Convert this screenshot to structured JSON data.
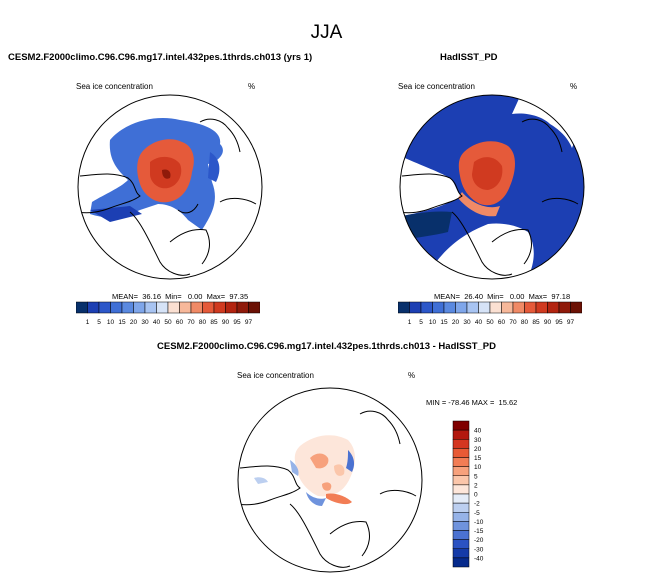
{
  "figure": {
    "title": "JJA"
  },
  "panels": [
    {
      "title": "CESM2.F2000climo.C96.C96.mg17.intel.432pes.1thrds.ch013 (yrs 1)",
      "variable": "Sea ice concentration",
      "units": "%",
      "stats": "MEAN=  36.16  Min=   0.00  Max=  97.35"
    },
    {
      "title": "HadISST_PD",
      "variable": "Sea ice concentration",
      "units": "%",
      "stats": "MEAN=  26.40  Min=   0.00  Max=  97.18"
    },
    {
      "title": "CESM2.F2000climo.C96.C96.mg17.intel.432pes.1thrds.ch013 - HadISST_PD",
      "variable": "Sea ice concentration",
      "units": "%",
      "stats": "MIN = -78.46 MAX =  15.62"
    }
  ],
  "colorbar_abs": {
    "labels": [
      "1",
      "5",
      "10",
      "15",
      "20",
      "30",
      "40",
      "50",
      "60",
      "70",
      "80",
      "85",
      "90",
      "95",
      "97"
    ],
    "colors": [
      "#08306b",
      "#1c3fb3",
      "#2c57c9",
      "#3f6fd6",
      "#5a89e0",
      "#7fa6ea",
      "#a8c4f2",
      "#d6e3f7",
      "#fbe0d2",
      "#f7b89a",
      "#f08a66",
      "#e55a3a",
      "#d03a20",
      "#b32410",
      "#8f1a0a",
      "#6b1104"
    ]
  },
  "colorbar_diff": {
    "labels": [
      "40",
      "30",
      "20",
      "15",
      "10",
      "5",
      "2",
      "0",
      "-2",
      "-5",
      "-10",
      "-15",
      "-20",
      "-30",
      "-40"
    ],
    "colors": [
      "#7f0000",
      "#b3190f",
      "#d43620",
      "#e85a35",
      "#f27d55",
      "#f7a17c",
      "#fbc6aa",
      "#fde6da",
      "#e4ecf8",
      "#bccff0",
      "#96b3e8",
      "#6f93dd",
      "#4b72d1",
      "#2b52c2",
      "#143aa8",
      "#062a8c"
    ]
  }
}
